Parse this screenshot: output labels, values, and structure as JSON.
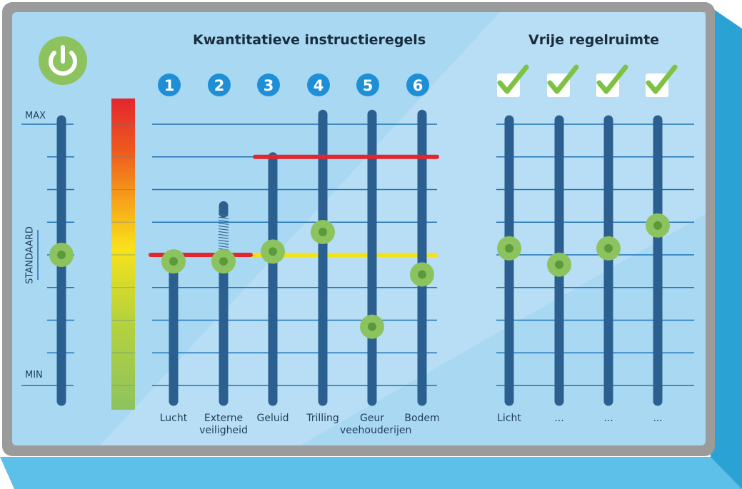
{
  "titles": {
    "quantitative": "Kwantitatieve instructieregels",
    "free": "Vrije regelruimte"
  },
  "axis": {
    "max_label": "MAX",
    "min_label": "MIN",
    "standard_label": "STANDAARD"
  },
  "icons": {
    "power": "power-icon",
    "check": "check-icon"
  },
  "colors": {
    "background": "#a9d8f2",
    "frame": "#9b9b9b",
    "track": "#2b5f8f",
    "knob": "#8dc35e",
    "knob_inner": "#5a9a3a",
    "red_limit": "#e3262e",
    "yellow_standard": "#f2e21c",
    "badge": "#1e8fd6"
  },
  "chart_data": {
    "type": "slider-diagram",
    "scale": {
      "min": 0,
      "max": 8,
      "standard": 4
    },
    "master_slider": {
      "value": 4
    },
    "color_scale": [
      "#e3262e",
      "#ee5a1e",
      "#f6a31a",
      "#f9e21c",
      "#b8d33a",
      "#8dc35e"
    ],
    "standard_line_value": 4,
    "quantitative_sliders": [
      {
        "number": "1",
        "label": "Lucht",
        "track_top": 4,
        "value": 3.8,
        "spring": false
      },
      {
        "number": "2",
        "label": "Externe veiligheid",
        "track_top": 5.5,
        "value": 3.8,
        "spring": true
      },
      {
        "number": "3",
        "label": "Geluid",
        "track_top": 7,
        "value": 4.1,
        "spring": false
      },
      {
        "number": "4",
        "label": "Trilling",
        "track_top": 8.3,
        "value": 4.7,
        "spring": false
      },
      {
        "number": "5",
        "label": "Geur veehouderijen",
        "track_top": 8.3,
        "value": 1.8,
        "spring": false
      },
      {
        "number": "6",
        "label": "Bodem",
        "track_top": 8.3,
        "value": 3.4,
        "spring": false
      }
    ],
    "red_limits": [
      {
        "from_slider": 0,
        "to_slider": 1,
        "value": 4
      },
      {
        "from_slider": 2,
        "to_slider": 5,
        "value": 7
      }
    ],
    "free_sliders": [
      {
        "label": "Licht",
        "checked": true,
        "value": 4.2
      },
      {
        "label": "...",
        "checked": true,
        "value": 3.7
      },
      {
        "label": "...",
        "checked": true,
        "value": 4.2
      },
      {
        "label": "...",
        "checked": true,
        "value": 4.9
      }
    ]
  }
}
